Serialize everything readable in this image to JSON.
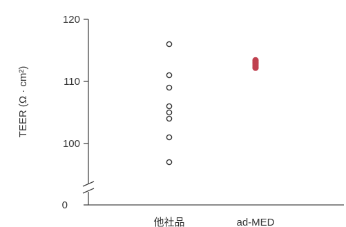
{
  "chart_data": {
    "type": "scatter",
    "title": "",
    "xlabel": "",
    "ylabel": "TEER (Ω · cm²)",
    "categories": [
      "他社品",
      "ad-MED"
    ],
    "ylim": [
      95,
      120
    ],
    "yticks": [
      120,
      110,
      100
    ],
    "y_break_tick": 0,
    "grid": false,
    "series": [
      {
        "category": "他社品",
        "marker": "open-circle",
        "color": "#333333",
        "values": [
          116,
          111,
          109,
          106,
          105,
          104,
          101,
          97
        ]
      },
      {
        "category": "ad-MED",
        "marker": "filled-circle",
        "color": "#c0404f",
        "values": [
          113.4,
          113.1,
          112.8,
          112.5,
          112.2
        ]
      }
    ]
  }
}
